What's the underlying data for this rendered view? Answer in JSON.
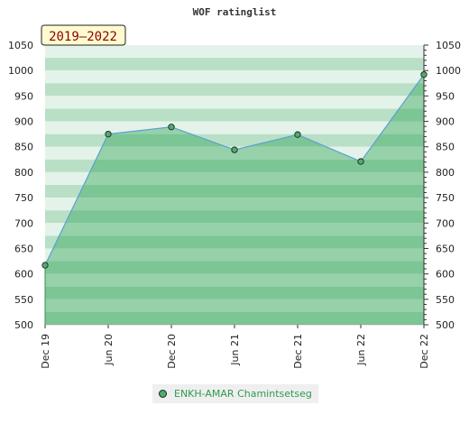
{
  "chart_data": {
    "type": "area",
    "title": "WOF ratinglist",
    "period_badge": "2019–2022",
    "categories": [
      "Dec 19",
      "Jun 20",
      "Dec 20",
      "Jun 21",
      "Dec 21",
      "Jun 22",
      "Dec 22"
    ],
    "series": [
      {
        "name": "ENKH-AMAR Chamintsetseg",
        "values": [
          617,
          875,
          889,
          844,
          874,
          821,
          992
        ]
      }
    ],
    "ylim": [
      500,
      1050
    ],
    "yticks": [
      500,
      550,
      600,
      650,
      700,
      750,
      800,
      850,
      900,
      950,
      1000,
      1050
    ],
    "axis_right": true,
    "legend_position": "bottom",
    "colors": {
      "line": "#5a9fd4",
      "marker": "#4dae6a",
      "fill": "#7cc595",
      "band_light": "#e4f3e9",
      "band_dark": "#b9e0c6",
      "badge_bg": "#fffbd0",
      "badge_text": "#8b0000"
    }
  }
}
